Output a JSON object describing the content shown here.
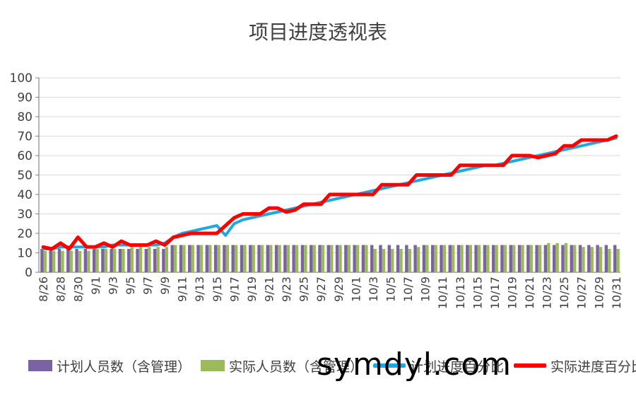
{
  "title": "项目进度透视表",
  "watermark": "symdyl.com",
  "chart_data": {
    "type": "bar+line",
    "title": "项目进度透视表",
    "ylim": [
      0,
      100
    ],
    "yticks": [
      0,
      10,
      20,
      30,
      40,
      50,
      60,
      70,
      80,
      90,
      100
    ],
    "grid": true,
    "legend_position": "bottom",
    "x": [
      "8/26",
      "8/27",
      "8/28",
      "8/29",
      "8/30",
      "8/31",
      "9/1",
      "9/2",
      "9/3",
      "9/4",
      "9/5",
      "9/6",
      "9/7",
      "9/8",
      "9/9",
      "9/10",
      "9/11",
      "9/12",
      "9/13",
      "9/14",
      "9/15",
      "9/16",
      "9/17",
      "9/18",
      "9/19",
      "9/20",
      "9/21",
      "9/22",
      "9/23",
      "9/24",
      "9/25",
      "9/26",
      "9/27",
      "9/28",
      "9/29",
      "9/30",
      "10/1",
      "10/2",
      "10/3",
      "10/4",
      "10/5",
      "10/6",
      "10/7",
      "10/8",
      "10/9",
      "10/10",
      "10/11",
      "10/12",
      "10/13",
      "10/14",
      "10/15",
      "10/16",
      "10/17",
      "10/18",
      "10/19",
      "10/20",
      "10/21",
      "10/22",
      "10/23",
      "10/24",
      "10/25",
      "10/26",
      "10/27",
      "10/28",
      "10/29",
      "10/30",
      "10/31"
    ],
    "tick_labels": [
      "8/26",
      "8/28",
      "8/30",
      "9/1",
      "9/3",
      "9/5",
      "9/7",
      "9/9",
      "9/11",
      "9/13",
      "9/15",
      "9/17",
      "9/19",
      "9/21",
      "9/23",
      "9/25",
      "9/27",
      "9/29",
      "10/1",
      "10/3",
      "10/5",
      "10/7",
      "10/9",
      "10/11",
      "10/13",
      "10/15",
      "10/17",
      "10/19",
      "10/21",
      "10/23",
      "10/25",
      "10/27",
      "10/29",
      "10/31"
    ],
    "series": [
      {
        "name": "计划人员数（含管理）",
        "kind": "bar",
        "color": "#7b62a3",
        "values": [
          12,
          12,
          12,
          12,
          12,
          12,
          12,
          12,
          12,
          12,
          12,
          12,
          12,
          12,
          12,
          14,
          14,
          14,
          14,
          14,
          14,
          14,
          14,
          14,
          14,
          14,
          14,
          14,
          14,
          14,
          14,
          14,
          14,
          14,
          14,
          14,
          14,
          14,
          14,
          14,
          14,
          14,
          14,
          14,
          14,
          14,
          14,
          14,
          14,
          14,
          14,
          14,
          14,
          14,
          14,
          14,
          14,
          14,
          14,
          14,
          14,
          14,
          14,
          14,
          14,
          14,
          14
        ]
      },
      {
        "name": "实际人员数（含管理）",
        "kind": "bar",
        "color": "#9bbb59",
        "values": [
          11,
          11,
          11,
          11,
          11,
          11,
          12,
          12,
          12,
          12,
          13,
          13,
          13,
          13,
          13,
          14,
          14,
          14,
          14,
          14,
          14,
          14,
          14,
          14,
          14,
          14,
          14,
          14,
          14,
          14,
          14,
          14,
          14,
          14,
          14,
          14,
          14,
          14,
          12,
          12,
          12,
          12,
          12,
          13,
          14,
          14,
          14,
          14,
          14,
          14,
          14,
          14,
          14,
          14,
          14,
          14,
          14,
          14,
          15,
          15,
          15,
          14,
          13,
          13,
          13,
          12,
          12
        ]
      },
      {
        "name": "计划进度百分比",
        "kind": "line",
        "color": "#1fa7df",
        "values": [
          12,
          12,
          13,
          13,
          13,
          13,
          13,
          13,
          14,
          14,
          14,
          14,
          14,
          14,
          15,
          18,
          20,
          21,
          22,
          23,
          24,
          19,
          25,
          27,
          28,
          29,
          30,
          31,
          32,
          33,
          34,
          35,
          36,
          37,
          38,
          39,
          40,
          41,
          42,
          43,
          44,
          45,
          46,
          47,
          48,
          49,
          50,
          51,
          52,
          53,
          54,
          55,
          55,
          56,
          57,
          58,
          59,
          60,
          61,
          62,
          63,
          64,
          65,
          66,
          67,
          68,
          69
        ]
      },
      {
        "name": "实际进度百分比",
        "kind": "line",
        "color": "#ff0000",
        "values": [
          13,
          12,
          15,
          12,
          18,
          13,
          13,
          15,
          13,
          16,
          14,
          14,
          14,
          16,
          14,
          18,
          19,
          20,
          20,
          20,
          20,
          24,
          28,
          30,
          30,
          30,
          33,
          33,
          31,
          32,
          35,
          35,
          35,
          40,
          40,
          40,
          40,
          40,
          40,
          45,
          45,
          45,
          45,
          50,
          50,
          50,
          50,
          50,
          55,
          55,
          55,
          55,
          55,
          55,
          60,
          60,
          60,
          59,
          60,
          61,
          65,
          65,
          68,
          68,
          68,
          68,
          70
        ]
      }
    ]
  }
}
